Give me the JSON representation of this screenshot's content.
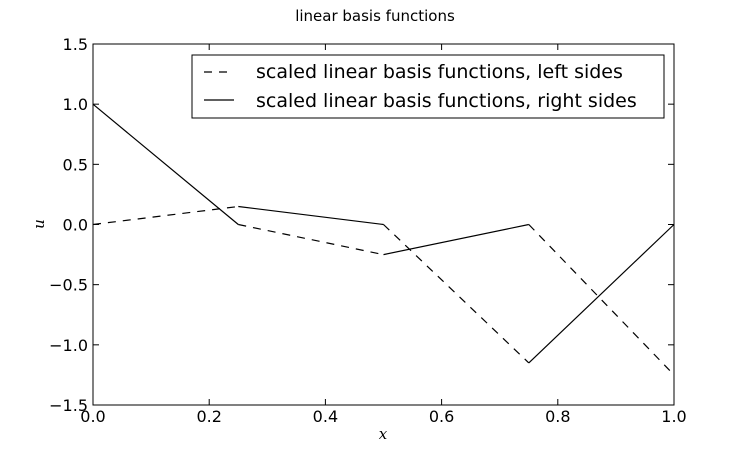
{
  "chart_data": {
    "type": "line",
    "title": "linear basis functions",
    "xlabel": "x",
    "ylabel": "u",
    "xlim": [
      0.0,
      1.0
    ],
    "ylim": [
      -1.5,
      1.5
    ],
    "xticks": [
      0.0,
      0.2,
      0.4,
      0.6,
      0.8,
      1.0
    ],
    "xtick_labels": [
      "0.0",
      "0.2",
      "0.4",
      "0.6",
      "0.8",
      "1.0"
    ],
    "yticks": [
      -1.5,
      -1.0,
      -0.5,
      0.0,
      0.5,
      1.0,
      1.5
    ],
    "ytick_labels": [
      "−1.5",
      "−1.0",
      "−0.5",
      "0.0",
      "0.5",
      "1.0",
      "1.5"
    ],
    "grid": false,
    "legend_position": "top-right",
    "series": [
      {
        "name": "scaled linear basis functions, left sides",
        "style": "dashed",
        "color": "#000000",
        "segments": [
          [
            [
              0.0,
              0.0
            ],
            [
              0.25,
              0.15
            ]
          ],
          [
            [
              0.25,
              0.0
            ],
            [
              0.5,
              -0.25
            ]
          ],
          [
            [
              0.5,
              0.0
            ],
            [
              0.75,
              -1.15
            ]
          ],
          [
            [
              0.75,
              0.0
            ],
            [
              1.0,
              -1.25
            ]
          ]
        ]
      },
      {
        "name": "scaled linear basis functions, right sides",
        "style": "solid",
        "color": "#000000",
        "segments": [
          [
            [
              0.0,
              1.0
            ],
            [
              0.25,
              0.0
            ]
          ],
          [
            [
              0.25,
              0.15
            ],
            [
              0.5,
              0.0
            ]
          ],
          [
            [
              0.5,
              -0.25
            ],
            [
              0.75,
              0.0
            ]
          ],
          [
            [
              0.75,
              -1.15
            ],
            [
              1.0,
              0.0
            ]
          ]
        ]
      }
    ]
  }
}
